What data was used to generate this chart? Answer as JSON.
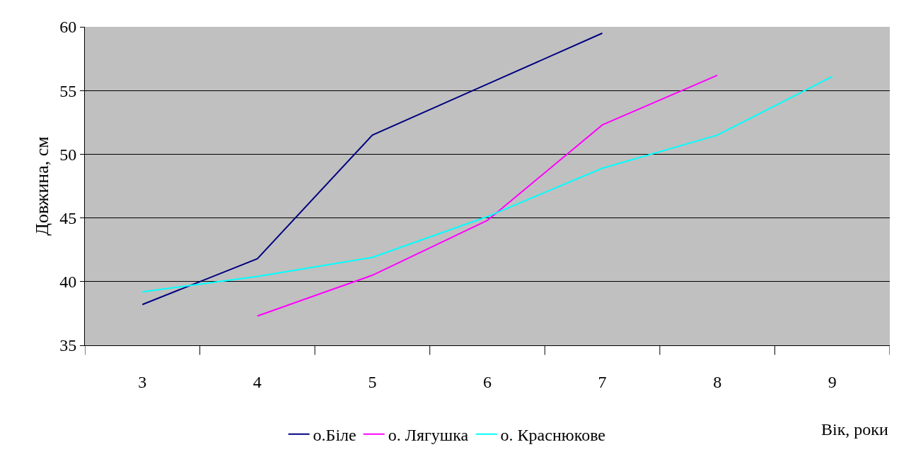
{
  "chart_data": {
    "type": "line",
    "xlabel": "Вік, роки",
    "ylabel": "Довжина, см",
    "categories": [
      "3",
      "4",
      "5",
      "6",
      "7",
      "8",
      "9"
    ],
    "series": [
      {
        "name": "о.Біле",
        "color": "#000080",
        "values": [
          38.2,
          41.8,
          51.5,
          55.5,
          59.5,
          null,
          null
        ]
      },
      {
        "name": "о. Лягушка",
        "color": "#ff00ff",
        "values": [
          null,
          37.3,
          40.5,
          44.8,
          52.3,
          56.2,
          null
        ]
      },
      {
        "name": "о. Краснюкове",
        "color": "#00ffff",
        "values": [
          39.2,
          40.4,
          41.9,
          45.1,
          48.9,
          51.5,
          56.1
        ]
      }
    ],
    "ylim": [
      35,
      60
    ],
    "yticks": [
      35,
      40,
      45,
      50,
      55,
      60
    ],
    "grid": "y",
    "legend": "bottom",
    "marker": "none",
    "line_style": "solid"
  }
}
